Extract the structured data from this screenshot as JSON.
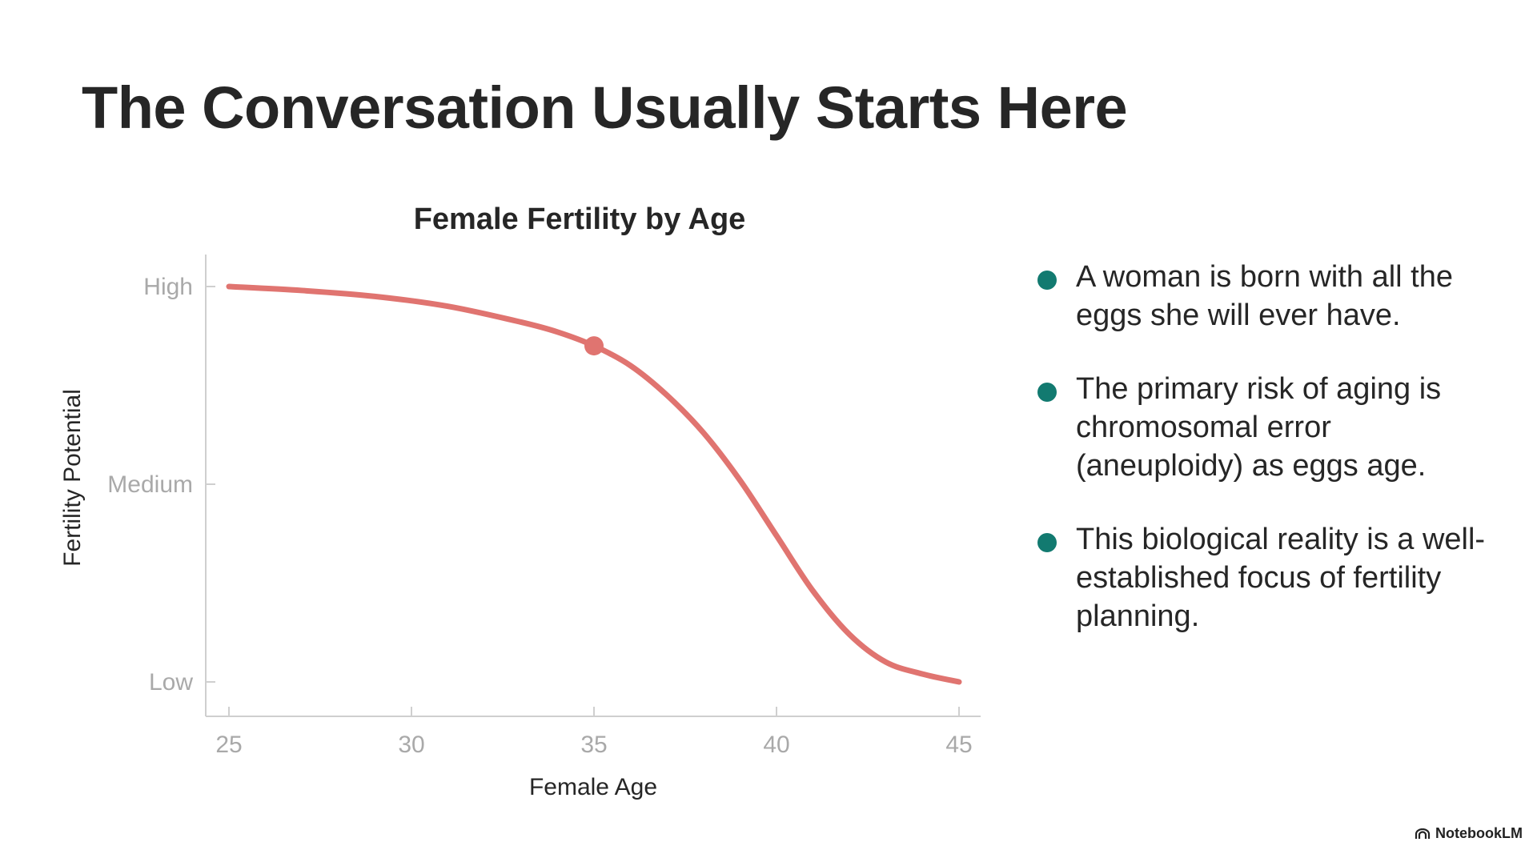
{
  "slide": {
    "title": "The Conversation Usually Starts Here"
  },
  "colors": {
    "curve": "#e07470",
    "axis": "#cfcfcf",
    "bullet": "#127a70"
  },
  "chart_data": {
    "type": "line",
    "title": "Female Fertility by Age",
    "xlabel": "Female Age",
    "ylabel": "Fertility Potential",
    "xlim": [
      25,
      45
    ],
    "ylim": [
      0,
      2
    ],
    "xticks": [
      25,
      30,
      35,
      40,
      45
    ],
    "yticks": [
      {
        "value": 2,
        "label": "High"
      },
      {
        "value": 1,
        "label": "Medium"
      },
      {
        "value": 0,
        "label": "Low"
      }
    ],
    "grid": false,
    "legend": false,
    "series": [
      {
        "x": [
          25,
          27,
          29,
          31,
          33,
          34,
          35,
          36,
          37,
          38,
          39,
          40,
          41,
          42,
          43,
          44,
          45
        ],
        "y": [
          2.0,
          1.98,
          1.95,
          1.9,
          1.82,
          1.77,
          1.7,
          1.6,
          1.45,
          1.26,
          1.02,
          0.74,
          0.46,
          0.24,
          0.1,
          0.04,
          0.0
        ]
      }
    ],
    "highlight": {
      "x": 35,
      "y": 1.7
    }
  },
  "bullets": [
    "A woman is born with all the eggs she will ever have.",
    "The primary risk of aging is chromosomal error (aneuploidy) as eggs age.",
    "This biological reality is a well-established focus of fertility planning."
  ],
  "brand": {
    "name": "NotebookLM",
    "icon": "notebooklm-logo-icon"
  }
}
